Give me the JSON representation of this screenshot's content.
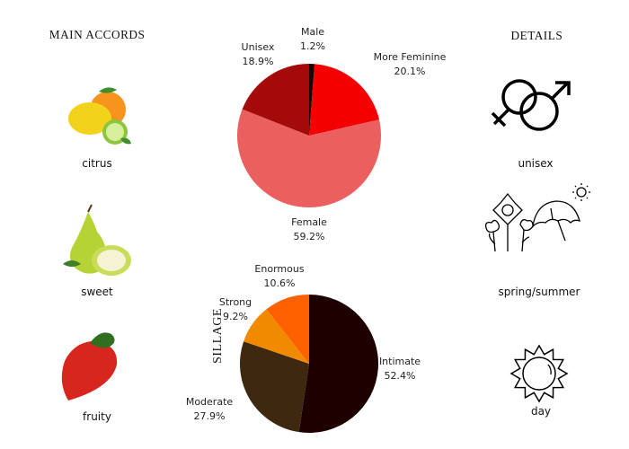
{
  "left": {
    "title": "MAIN ACCORDS",
    "accords": [
      {
        "label": "citrus",
        "icon": "citrus-fruit-icon"
      },
      {
        "label": "sweet",
        "icon": "pear-icon"
      },
      {
        "label": "fruity",
        "icon": "strawberry-icon"
      }
    ]
  },
  "right": {
    "title": "DETAILS",
    "items": [
      {
        "label": "unisex",
        "icon": "gender-symbols-icon"
      },
      {
        "label": "spring/summer",
        "icon": "flowers-umbrella-sun-icon"
      },
      {
        "label": "day",
        "icon": "sun-icon"
      }
    ]
  },
  "chart_data": [
    {
      "type": "pie",
      "title": "",
      "slices": [
        {
          "label": "Male",
          "value": 1.2,
          "display": "1.2%",
          "color": "#1f0000"
        },
        {
          "label": "More Feminine",
          "value": 20.1,
          "display": "20.1%",
          "color": "#f50000"
        },
        {
          "label": "Female",
          "value": 59.2,
          "display": "59.2%",
          "color": "#eb5f5f"
        },
        {
          "label": "Unisex",
          "value": 18.9,
          "display": "18.9%",
          "color": "#a50a0a"
        }
      ]
    },
    {
      "type": "pie",
      "title": "SILLAGE",
      "slices": [
        {
          "label": "Intimate",
          "value": 52.4,
          "display": "52.4%",
          "color": "#1e0000"
        },
        {
          "label": "Moderate",
          "value": 27.9,
          "display": "27.9%",
          "color": "#3f2810"
        },
        {
          "label": "Strong",
          "value": 9.2,
          "display": "9.2%",
          "color": "#f28a00"
        },
        {
          "label": "Enormous",
          "value": 10.6,
          "display": "10.6%",
          "color": "#ff6100"
        }
      ]
    }
  ]
}
